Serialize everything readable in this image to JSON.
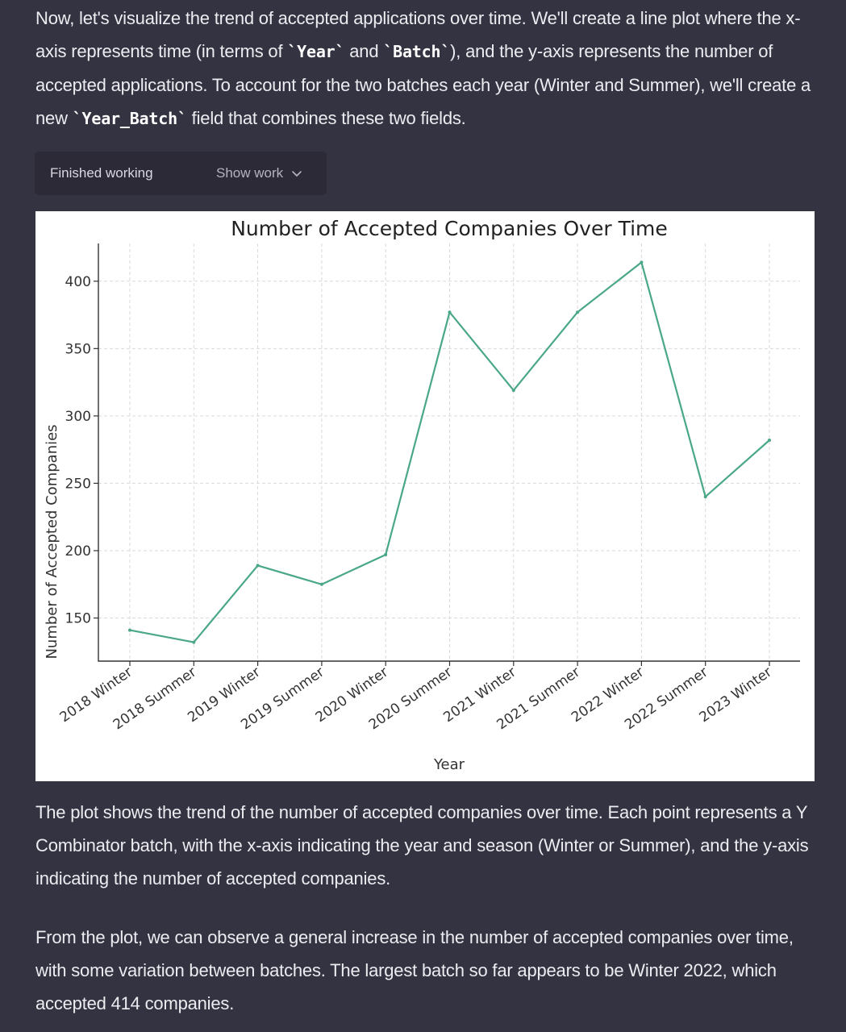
{
  "intro": {
    "segments": [
      {
        "text": "Now, let's visualize the trend of accepted applications over time. We'll create a line plot where the x-axis represents time (in terms of "
      },
      {
        "text": "`Year`",
        "code": true
      },
      {
        "text": " and "
      },
      {
        "text": "`Batch`",
        "code": true
      },
      {
        "text": "), and the y-axis represents the number of accepted applications. To account for the two batches each year (Winter and Summer), we'll create a new "
      },
      {
        "text": "`Year_Batch`",
        "code": true
      },
      {
        "text": " field that combines these two fields."
      }
    ]
  },
  "work_bar": {
    "status": "Finished working",
    "toggle_label": "Show work",
    "toggle_icon": "chevron-down-icon"
  },
  "chart_data": {
    "type": "line",
    "title": "Number of Accepted Companies Over Time",
    "xlabel": "Year",
    "ylabel": "Number of Accepted Companies",
    "categories": [
      "2018 Winter",
      "2018 Summer",
      "2019 Winter",
      "2019 Summer",
      "2020 Winter",
      "2020 Summer",
      "2021 Winter",
      "2021 Summer",
      "2022 Winter",
      "2022 Summer",
      "2023 Winter"
    ],
    "values": [
      141,
      132,
      189,
      175,
      197,
      377,
      319,
      377,
      414,
      240,
      282
    ],
    "yticks": [
      150,
      200,
      250,
      300,
      350,
      400
    ],
    "ylim": [
      118,
      428
    ],
    "grid": true,
    "line_color": "#4aa887"
  },
  "summary": {
    "paragraph1": "The plot shows the trend of the number of accepted companies over time. Each point represents a Y Combinator batch, with the x-axis indicating the year and season (Winter or Summer), and the y-axis indicating the number of accepted companies.",
    "paragraph2": "From the plot, we can observe a general increase in the number of accepted companies over time, with some variation between batches. The largest batch so far appears to be Winter 2022, which accepted 414 companies."
  }
}
